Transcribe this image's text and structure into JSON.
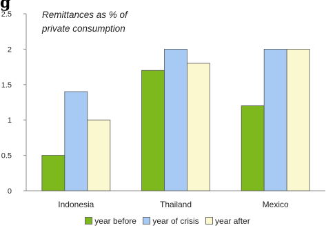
{
  "clipped_title": "g",
  "chart_data": {
    "type": "bar",
    "annotation": [
      "Remittances as % of",
      "private consumption"
    ],
    "categories": [
      "Indonesia",
      "Thailand",
      "Mexico"
    ],
    "series": [
      {
        "name": "year before",
        "values": [
          0.5,
          1.7,
          1.2
        ],
        "color": "#7db81c"
      },
      {
        "name": "year of crisis",
        "values": [
          1.4,
          2.0,
          2.0
        ],
        "color": "#a6caf4"
      },
      {
        "name": "year after",
        "values": [
          1.0,
          1.8,
          2.0
        ],
        "color": "#fbf8cf"
      }
    ],
    "yticks": [
      "0",
      "0.5",
      "1",
      "1.5",
      "2",
      "2.5"
    ],
    "ylim": [
      0,
      2.5
    ],
    "grid": false,
    "legend_position": "bottom"
  }
}
